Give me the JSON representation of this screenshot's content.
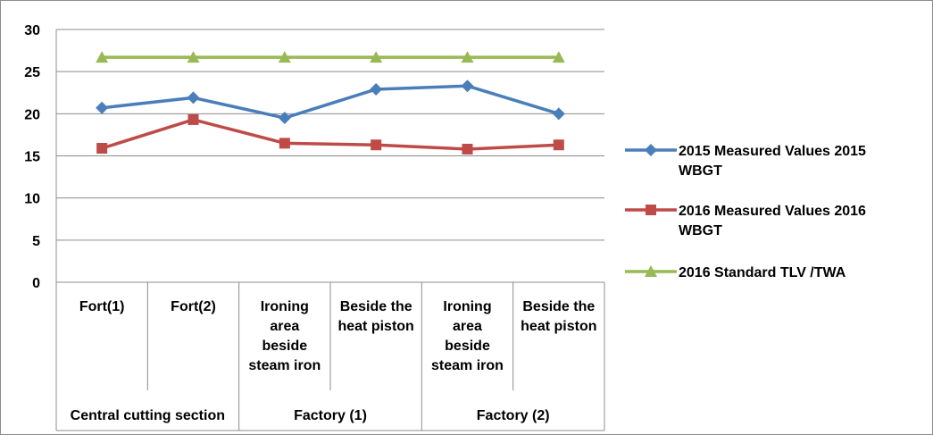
{
  "chart_data": {
    "type": "line",
    "categories": [
      "Fort(1)",
      "Fort(2)",
      "Ironing area beside steam iron",
      "Beside the heat piston",
      "Ironing area beside steam iron",
      "Beside the heat piston"
    ],
    "category_lines": [
      [
        "Fort(1)"
      ],
      [
        "Fort(2)"
      ],
      [
        "Ironing",
        "area",
        "beside",
        "steam iron"
      ],
      [
        "Beside the",
        "heat piston"
      ],
      [
        "Ironing",
        "area",
        "beside",
        "steam iron"
      ],
      [
        "Beside the",
        "heat piston"
      ]
    ],
    "groups": [
      {
        "label": "Central cutting section",
        "span": 2
      },
      {
        "label": "Factory (1)",
        "span": 2
      },
      {
        "label": "Factory (2)",
        "span": 2
      }
    ],
    "series": [
      {
        "name": "2015 Measured Values 2015 WBGT",
        "legend_lines": [
          "2015 Measured Values 2015",
          "WBGT"
        ],
        "color": "#4a7ebb",
        "marker": "diamond",
        "values": [
          20.7,
          21.9,
          19.5,
          22.9,
          23.3,
          20.0
        ]
      },
      {
        "name": "2016 Measured Values 2016 WBGT",
        "legend_lines": [
          "2016 Measured Values 2016",
          "WBGT"
        ],
        "color": "#be4b48",
        "marker": "square",
        "values": [
          15.9,
          19.3,
          16.5,
          16.3,
          15.8,
          16.3
        ]
      },
      {
        "name": "2016 Standard TLV /TWA",
        "legend_lines": [
          "2016 Standard TLV /TWA"
        ],
        "color": "#98b954",
        "marker": "triangle",
        "values": [
          26.7,
          26.7,
          26.7,
          26.7,
          26.7,
          26.7
        ]
      }
    ],
    "ylim": [
      0,
      30
    ],
    "yticks": [
      0,
      5,
      10,
      15,
      20,
      25,
      30
    ],
    "grid": true,
    "legend_position": "right"
  }
}
